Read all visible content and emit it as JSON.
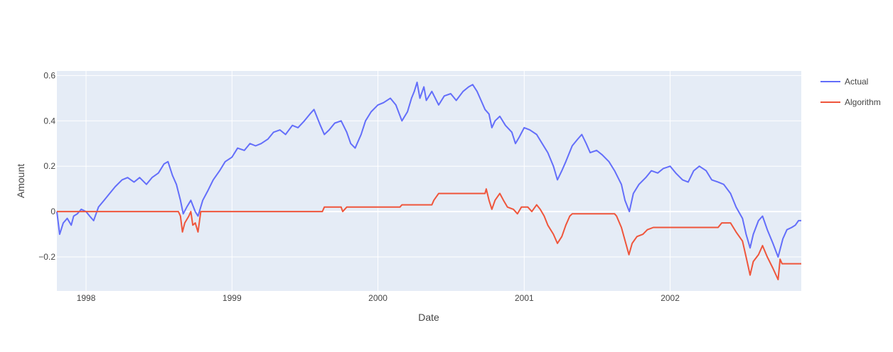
{
  "chart_data": {
    "type": "line",
    "xlabel": "Date",
    "ylabel": "Amount",
    "x_range": [
      "1997-10-20",
      "2002-11-25"
    ],
    "ylim": [
      -0.35,
      0.62
    ],
    "x_ticks": [
      {
        "date": "1998-01-01",
        "label": "1998"
      },
      {
        "date": "1999-01-01",
        "label": "1999"
      },
      {
        "date": "2000-01-01",
        "label": "2000"
      },
      {
        "date": "2001-01-01",
        "label": "2001"
      },
      {
        "date": "2002-01-01",
        "label": "2002"
      }
    ],
    "y_ticks": [
      {
        "value": 0.6,
        "label": "0.6"
      },
      {
        "value": 0.4,
        "label": "0.4"
      },
      {
        "value": 0.2,
        "label": "0.2"
      },
      {
        "value": 0,
        "label": "0"
      },
      {
        "value": -0.2,
        "label": "−0.2"
      }
    ],
    "grid": true,
    "legend_position": "top-right",
    "series": [
      {
        "name": "Actual",
        "color": "#636efa",
        "points": [
          [
            "1997-10-20",
            0.0
          ],
          [
            "1997-10-27",
            -0.1
          ],
          [
            "1997-11-05",
            -0.05
          ],
          [
            "1997-11-15",
            -0.03
          ],
          [
            "1997-11-25",
            -0.06
          ],
          [
            "1997-12-01",
            -0.02
          ],
          [
            "1997-12-10",
            -0.01
          ],
          [
            "1997-12-20",
            0.01
          ],
          [
            "1998-01-01",
            0.0
          ],
          [
            "1998-01-10",
            -0.02
          ],
          [
            "1998-01-20",
            -0.04
          ],
          [
            "1998-02-01",
            0.02
          ],
          [
            "1998-02-15",
            0.05
          ],
          [
            "1998-03-01",
            0.08
          ],
          [
            "1998-03-15",
            0.11
          ],
          [
            "1998-04-01",
            0.14
          ],
          [
            "1998-04-15",
            0.15
          ],
          [
            "1998-05-01",
            0.13
          ],
          [
            "1998-05-15",
            0.15
          ],
          [
            "1998-06-01",
            0.12
          ],
          [
            "1998-06-15",
            0.15
          ],
          [
            "1998-07-01",
            0.17
          ],
          [
            "1998-07-15",
            0.21
          ],
          [
            "1998-07-25",
            0.22
          ],
          [
            "1998-08-05",
            0.16
          ],
          [
            "1998-08-15",
            0.12
          ],
          [
            "1998-08-25",
            0.05
          ],
          [
            "1998-09-01",
            -0.01
          ],
          [
            "1998-09-10",
            0.02
          ],
          [
            "1998-09-20",
            0.05
          ],
          [
            "1998-10-01",
            0.0
          ],
          [
            "1998-10-08",
            -0.02
          ],
          [
            "1998-10-20",
            0.05
          ],
          [
            "1998-11-01",
            0.09
          ],
          [
            "1998-11-15",
            0.14
          ],
          [
            "1998-12-01",
            0.18
          ],
          [
            "1998-12-15",
            0.22
          ],
          [
            "1999-01-01",
            0.24
          ],
          [
            "1999-01-15",
            0.28
          ],
          [
            "1999-02-01",
            0.27
          ],
          [
            "1999-02-15",
            0.3
          ],
          [
            "1999-03-01",
            0.29
          ],
          [
            "1999-03-15",
            0.3
          ],
          [
            "1999-04-01",
            0.32
          ],
          [
            "1999-04-15",
            0.35
          ],
          [
            "1999-05-01",
            0.36
          ],
          [
            "1999-05-15",
            0.34
          ],
          [
            "1999-06-01",
            0.38
          ],
          [
            "1999-06-15",
            0.37
          ],
          [
            "1999-07-01",
            0.4
          ],
          [
            "1999-07-15",
            0.43
          ],
          [
            "1999-07-25",
            0.45
          ],
          [
            "1999-08-10",
            0.38
          ],
          [
            "1999-08-20",
            0.34
          ],
          [
            "1999-09-01",
            0.36
          ],
          [
            "1999-09-15",
            0.39
          ],
          [
            "1999-10-01",
            0.4
          ],
          [
            "1999-10-15",
            0.35
          ],
          [
            "1999-10-25",
            0.3
          ],
          [
            "1999-11-05",
            0.28
          ],
          [
            "1999-11-20",
            0.34
          ],
          [
            "1999-12-01",
            0.4
          ],
          [
            "1999-12-15",
            0.44
          ],
          [
            "2000-01-01",
            0.47
          ],
          [
            "2000-01-15",
            0.48
          ],
          [
            "2000-02-01",
            0.5
          ],
          [
            "2000-02-15",
            0.47
          ],
          [
            "2000-03-01",
            0.4
          ],
          [
            "2000-03-15",
            0.44
          ],
          [
            "2000-03-25",
            0.5
          ],
          [
            "2000-04-01",
            0.53
          ],
          [
            "2000-04-08",
            0.57
          ],
          [
            "2000-04-15",
            0.5
          ],
          [
            "2000-04-25",
            0.55
          ],
          [
            "2000-05-01",
            0.49
          ],
          [
            "2000-05-15",
            0.53
          ],
          [
            "2000-06-01",
            0.47
          ],
          [
            "2000-06-15",
            0.51
          ],
          [
            "2000-07-01",
            0.52
          ],
          [
            "2000-07-15",
            0.49
          ],
          [
            "2000-08-01",
            0.53
          ],
          [
            "2000-08-15",
            0.55
          ],
          [
            "2000-08-25",
            0.56
          ],
          [
            "2000-09-05",
            0.53
          ],
          [
            "2000-09-15",
            0.49
          ],
          [
            "2000-09-25",
            0.45
          ],
          [
            "2000-10-05",
            0.43
          ],
          [
            "2000-10-12",
            0.37
          ],
          [
            "2000-10-20",
            0.4
          ],
          [
            "2000-11-01",
            0.42
          ],
          [
            "2000-11-15",
            0.38
          ],
          [
            "2000-12-01",
            0.35
          ],
          [
            "2000-12-10",
            0.3
          ],
          [
            "2000-12-20",
            0.33
          ],
          [
            "2001-01-01",
            0.37
          ],
          [
            "2001-01-15",
            0.36
          ],
          [
            "2001-02-01",
            0.34
          ],
          [
            "2001-02-15",
            0.3
          ],
          [
            "2001-03-01",
            0.26
          ],
          [
            "2001-03-15",
            0.2
          ],
          [
            "2001-03-25",
            0.14
          ],
          [
            "2001-04-05",
            0.18
          ],
          [
            "2001-04-15",
            0.22
          ],
          [
            "2001-05-01",
            0.29
          ],
          [
            "2001-05-15",
            0.32
          ],
          [
            "2001-05-25",
            0.34
          ],
          [
            "2001-06-05",
            0.3
          ],
          [
            "2001-06-15",
            0.26
          ],
          [
            "2001-07-01",
            0.27
          ],
          [
            "2001-07-15",
            0.25
          ],
          [
            "2001-08-01",
            0.22
          ],
          [
            "2001-08-15",
            0.18
          ],
          [
            "2001-09-01",
            0.12
          ],
          [
            "2001-09-10",
            0.05
          ],
          [
            "2001-09-21",
            0.0
          ],
          [
            "2001-10-01",
            0.08
          ],
          [
            "2001-10-15",
            0.12
          ],
          [
            "2001-11-01",
            0.15
          ],
          [
            "2001-11-15",
            0.18
          ],
          [
            "2001-12-01",
            0.17
          ],
          [
            "2001-12-15",
            0.19
          ],
          [
            "2002-01-01",
            0.2
          ],
          [
            "2002-01-15",
            0.17
          ],
          [
            "2002-02-01",
            0.14
          ],
          [
            "2002-02-15",
            0.13
          ],
          [
            "2002-03-01",
            0.18
          ],
          [
            "2002-03-15",
            0.2
          ],
          [
            "2002-04-01",
            0.18
          ],
          [
            "2002-04-15",
            0.14
          ],
          [
            "2002-05-01",
            0.13
          ],
          [
            "2002-05-15",
            0.12
          ],
          [
            "2002-06-01",
            0.08
          ],
          [
            "2002-06-15",
            0.02
          ],
          [
            "2002-07-01",
            -0.03
          ],
          [
            "2002-07-10",
            -0.1
          ],
          [
            "2002-07-20",
            -0.16
          ],
          [
            "2002-07-28",
            -0.1
          ],
          [
            "2002-08-10",
            -0.04
          ],
          [
            "2002-08-20",
            -0.02
          ],
          [
            "2002-09-01",
            -0.08
          ],
          [
            "2002-09-15",
            -0.14
          ],
          [
            "2002-09-28",
            -0.2
          ],
          [
            "2002-10-10",
            -0.12
          ],
          [
            "2002-10-20",
            -0.08
          ],
          [
            "2002-11-01",
            -0.07
          ],
          [
            "2002-11-10",
            -0.06
          ],
          [
            "2002-11-18",
            -0.04
          ],
          [
            "2002-11-25",
            -0.04
          ]
        ]
      },
      {
        "name": "Algorithm",
        "color": "#ef553b",
        "points": [
          [
            "1997-10-20",
            0.0
          ],
          [
            "1998-08-20",
            0.0
          ],
          [
            "1998-08-25",
            -0.02
          ],
          [
            "1998-08-30",
            -0.09
          ],
          [
            "1998-09-05",
            -0.05
          ],
          [
            "1998-09-15",
            -0.02
          ],
          [
            "1998-09-20",
            0.0
          ],
          [
            "1998-09-25",
            -0.06
          ],
          [
            "1998-10-01",
            -0.05
          ],
          [
            "1998-10-08",
            -0.09
          ],
          [
            "1998-10-15",
            0.0
          ],
          [
            "1999-08-15",
            0.0
          ],
          [
            "1999-08-20",
            0.02
          ],
          [
            "1999-10-01",
            0.02
          ],
          [
            "1999-10-05",
            0.0
          ],
          [
            "1999-10-15",
            0.02
          ],
          [
            "2000-01-01",
            0.02
          ],
          [
            "2000-02-25",
            0.02
          ],
          [
            "2000-03-01",
            0.03
          ],
          [
            "2000-05-15",
            0.03
          ],
          [
            "2000-05-20",
            0.05
          ],
          [
            "2000-06-01",
            0.08
          ],
          [
            "2000-09-25",
            0.08
          ],
          [
            "2000-09-28",
            0.1
          ],
          [
            "2000-10-05",
            0.05
          ],
          [
            "2000-10-12",
            0.01
          ],
          [
            "2000-10-20",
            0.05
          ],
          [
            "2000-11-01",
            0.08
          ],
          [
            "2000-11-10",
            0.05
          ],
          [
            "2000-11-20",
            0.02
          ],
          [
            "2000-12-05",
            0.01
          ],
          [
            "2000-12-15",
            -0.01
          ],
          [
            "2000-12-25",
            0.02
          ],
          [
            "2001-01-10",
            0.02
          ],
          [
            "2001-01-20",
            0.0
          ],
          [
            "2001-02-01",
            0.03
          ],
          [
            "2001-02-10",
            0.01
          ],
          [
            "2001-02-20",
            -0.02
          ],
          [
            "2001-03-01",
            -0.06
          ],
          [
            "2001-03-15",
            -0.1
          ],
          [
            "2001-03-25",
            -0.14
          ],
          [
            "2001-04-05",
            -0.11
          ],
          [
            "2001-04-15",
            -0.06
          ],
          [
            "2001-04-25",
            -0.02
          ],
          [
            "2001-05-01",
            -0.01
          ],
          [
            "2001-08-15",
            -0.01
          ],
          [
            "2001-08-20",
            -0.02
          ],
          [
            "2001-09-01",
            -0.07
          ],
          [
            "2001-09-12",
            -0.14
          ],
          [
            "2001-09-20",
            -0.19
          ],
          [
            "2001-09-28",
            -0.14
          ],
          [
            "2001-10-10",
            -0.11
          ],
          [
            "2001-10-25",
            -0.1
          ],
          [
            "2001-11-05",
            -0.08
          ],
          [
            "2001-11-20",
            -0.07
          ],
          [
            "2002-05-01",
            -0.07
          ],
          [
            "2002-05-10",
            -0.05
          ],
          [
            "2002-06-01",
            -0.05
          ],
          [
            "2002-06-15",
            -0.09
          ],
          [
            "2002-07-01",
            -0.13
          ],
          [
            "2002-07-10",
            -0.2
          ],
          [
            "2002-07-20",
            -0.28
          ],
          [
            "2002-07-28",
            -0.22
          ],
          [
            "2002-08-10",
            -0.19
          ],
          [
            "2002-08-20",
            -0.15
          ],
          [
            "2002-09-01",
            -0.2
          ],
          [
            "2002-09-15",
            -0.25
          ],
          [
            "2002-09-28",
            -0.3
          ],
          [
            "2002-10-03",
            -0.21
          ],
          [
            "2002-10-08",
            -0.23
          ],
          [
            "2002-11-25",
            -0.23
          ]
        ]
      }
    ]
  }
}
